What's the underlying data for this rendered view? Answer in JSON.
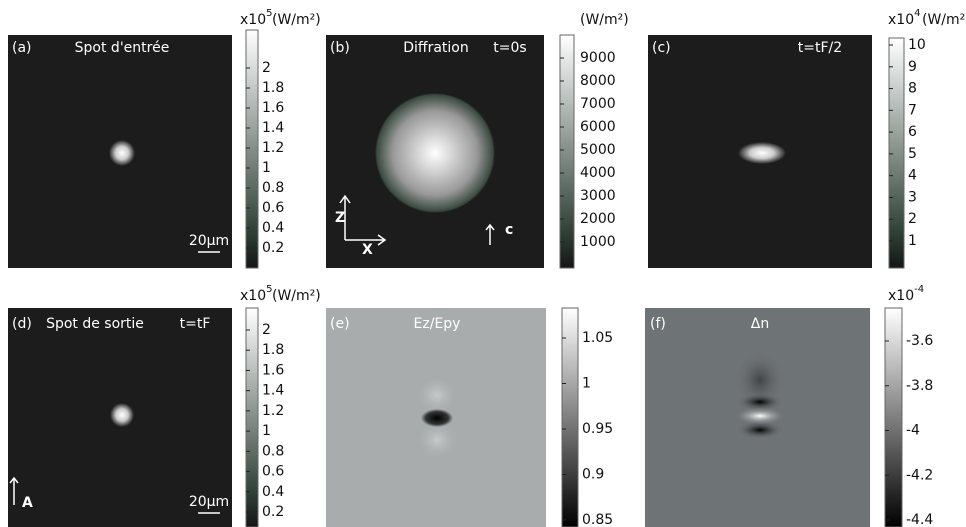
{
  "panels": [
    {
      "label": "(a)",
      "title": "Spot d'entrée",
      "scale_bar": "20μm",
      "colorbar": {
        "exponent": {
          "base": "x10",
          "power": "5"
        },
        "unit": "(W/m²)",
        "ticks": [
          2,
          1.8,
          1.6,
          1.4,
          1.2,
          1,
          0.8,
          0.6,
          0.4,
          0.2
        ]
      }
    },
    {
      "label": "(b)",
      "title": "Diffration",
      "time": "t=0s",
      "axes": {
        "z": "Z",
        "x": "X",
        "c": "c"
      },
      "colorbar": {
        "unit": "(W/m²)",
        "ticks": [
          9000,
          8000,
          7000,
          6000,
          5000,
          4000,
          3000,
          2000,
          1000
        ]
      }
    },
    {
      "label": "(c)",
      "time": "t=tF/2",
      "colorbar": {
        "exponent": {
          "base": "x10",
          "power": "4"
        },
        "unit": "(W/m²)",
        "ticks": [
          10,
          9,
          8,
          7,
          6,
          5,
          4,
          3,
          2,
          1
        ]
      }
    },
    {
      "label": "(d)",
      "title": "Spot de sortie",
      "time": "t=tF",
      "scale_bar": "20μm",
      "axes": {
        "a": "A"
      },
      "colorbar": {
        "exponent": {
          "base": "x10",
          "power": "5"
        },
        "unit": "(W/m²)",
        "ticks": [
          2,
          1.8,
          1.6,
          1.4,
          1.2,
          1,
          0.8,
          0.6,
          0.4,
          0.2
        ]
      }
    },
    {
      "label": "(e)",
      "title": "Ez/Epy",
      "colorbar": {
        "ticks": [
          1.05,
          1,
          0.95,
          0.9,
          0.85
        ]
      }
    },
    {
      "label": "(f)",
      "title": "Δn",
      "colorbar": {
        "exponent": {
          "base": "x10",
          "power": "-4"
        },
        "ticks": [
          -3.6,
          -3.8,
          -4,
          -4.2,
          -4.4
        ]
      }
    }
  ]
}
